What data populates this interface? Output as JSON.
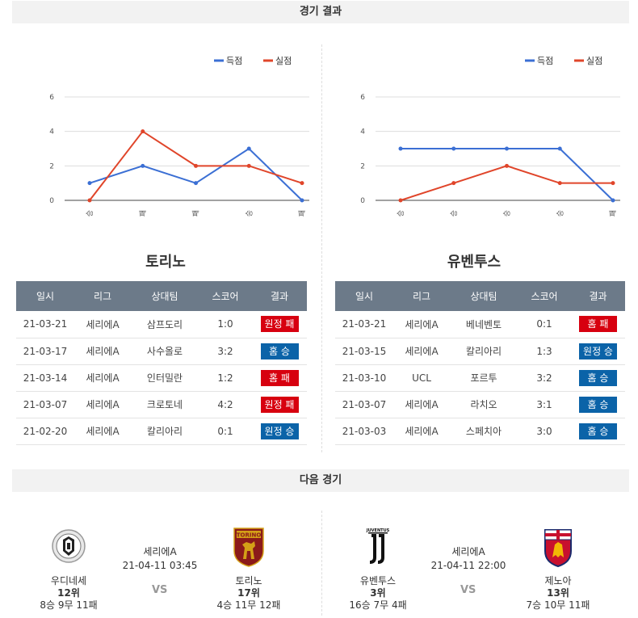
{
  "sections": {
    "results_title": "경기 결과",
    "next_title": "다음 경기"
  },
  "legend": {
    "scored": "득점",
    "conceded": "실점"
  },
  "colors": {
    "scored": "#3b6fd4",
    "conceded": "#e0452a",
    "win": "#0b63a8",
    "loss": "#d7000f",
    "header": "#6c7a89"
  },
  "chart_data": [
    {
      "type": "line",
      "categories": [
        "승",
        "패",
        "패",
        "승",
        "패"
      ],
      "series": [
        {
          "name": "득점",
          "values": [
            1,
            2,
            1,
            3,
            0
          ]
        },
        {
          "name": "실점",
          "values": [
            0,
            4,
            2,
            2,
            1
          ]
        }
      ],
      "yticks": [
        0,
        2,
        4,
        6
      ],
      "ylim": [
        0,
        6
      ],
      "legend_position": "top-right"
    },
    {
      "type": "line",
      "categories": [
        "승",
        "승",
        "승",
        "승",
        "패"
      ],
      "series": [
        {
          "name": "득점",
          "values": [
            3,
            3,
            3,
            3,
            0
          ]
        },
        {
          "name": "실점",
          "values": [
            0,
            1,
            2,
            1,
            1
          ]
        }
      ],
      "yticks": [
        0,
        2,
        4,
        6
      ],
      "ylim": [
        0,
        6
      ],
      "legend_position": "top-right"
    }
  ],
  "table_headers": [
    "일시",
    "리그",
    "상대팀",
    "스코어",
    "결과"
  ],
  "teams": [
    {
      "name": "토리노",
      "rows": [
        {
          "date": "21-03-21",
          "league": "세리에A",
          "opponent": "삼프도리",
          "score": "1:0",
          "result": "원정 패",
          "type": "loss"
        },
        {
          "date": "21-03-17",
          "league": "세리에A",
          "opponent": "사수올로",
          "score": "3:2",
          "result": "홈 승",
          "type": "win"
        },
        {
          "date": "21-03-14",
          "league": "세리에A",
          "opponent": "인터밀란",
          "score": "1:2",
          "result": "홈 패",
          "type": "loss"
        },
        {
          "date": "21-03-07",
          "league": "세리에A",
          "opponent": "크로토네",
          "score": "4:2",
          "result": "원정 패",
          "type": "loss"
        },
        {
          "date": "21-02-20",
          "league": "세리에A",
          "opponent": "칼리아리",
          "score": "0:1",
          "result": "원정 승",
          "type": "win"
        }
      ]
    },
    {
      "name": "유벤투스",
      "rows": [
        {
          "date": "21-03-21",
          "league": "세리에A",
          "opponent": "베네벤토",
          "score": "0:1",
          "result": "홈 패",
          "type": "loss"
        },
        {
          "date": "21-03-15",
          "league": "세리에A",
          "opponent": "칼리아리",
          "score": "1:3",
          "result": "원정 승",
          "type": "win"
        },
        {
          "date": "21-03-10",
          "league": "UCL",
          "opponent": "포르투",
          "score": "3:2",
          "result": "홈 승",
          "type": "win"
        },
        {
          "date": "21-03-07",
          "league": "세리에A",
          "opponent": "라치오",
          "score": "3:1",
          "result": "홈 승",
          "type": "win"
        },
        {
          "date": "21-03-03",
          "league": "세리에A",
          "opponent": "스페치아",
          "score": "3:0",
          "result": "홈 승",
          "type": "win"
        }
      ]
    }
  ],
  "next_matches": [
    {
      "league": "세리에A",
      "datetime": "21-04-11 03:45",
      "vs": "VS",
      "home": {
        "name": "우디네세",
        "rank": "12위",
        "record": "8승 9무 11패",
        "logo": "udinese-logo-icon"
      },
      "away": {
        "name": "토리노",
        "rank": "17위",
        "record": "4승 11무 12패",
        "logo": "torino-logo-icon",
        "logo_text": "TORINO"
      }
    },
    {
      "league": "세리에A",
      "datetime": "21-04-11 22:00",
      "vs": "VS",
      "home": {
        "name": "유벤투스",
        "rank": "3위",
        "record": "16승 7무 4패",
        "logo": "juventus-logo-icon",
        "logo_text": "JUVENTUS"
      },
      "away": {
        "name": "제노아",
        "rank": "13위",
        "record": "7승 10무 11패",
        "logo": "genoa-logo-icon"
      }
    }
  ]
}
